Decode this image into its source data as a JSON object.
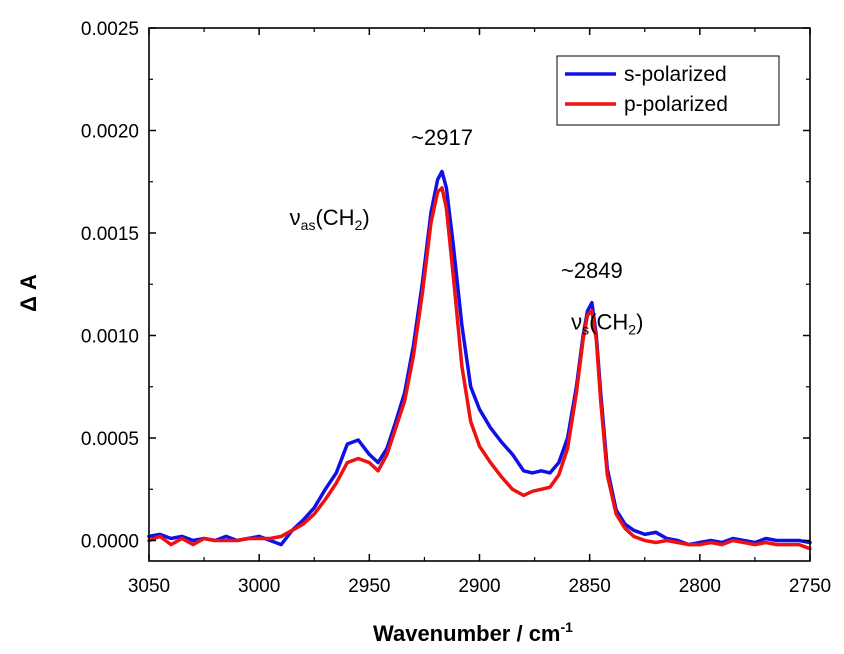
{
  "chart_data": {
    "type": "line",
    "xlabel": "Wavenumber / cm",
    "xlabel_superscript": "-1",
    "ylabel": "Δ A",
    "xlim": [
      3050,
      2750
    ],
    "ylim": [
      -0.0001,
      0.0025
    ],
    "x_ticks": [
      3050,
      3000,
      2950,
      2900,
      2850,
      2800,
      2750
    ],
    "y_ticks": [
      0.0,
      0.0005,
      0.001,
      0.0015,
      0.002,
      0.0025
    ],
    "x_tick_labels": [
      "3050",
      "3000",
      "2950",
      "2900",
      "2850",
      "2800",
      "2750"
    ],
    "y_tick_labels": [
      "0.0000",
      "0.0005",
      "0.0010",
      "0.0015",
      "0.0020",
      "0.0025"
    ],
    "legend_position": "top-right",
    "series": [
      {
        "name": "s-polarized",
        "color": "#1010e6",
        "x": [
          3050,
          3045,
          3040,
          3035,
          3030,
          3025,
          3020,
          3015,
          3010,
          3005,
          3000,
          2995,
          2990,
          2985,
          2980,
          2975,
          2970,
          2965,
          2960,
          2955,
          2950,
          2946,
          2942,
          2938,
          2934,
          2930,
          2926,
          2922,
          2919,
          2917,
          2915,
          2912,
          2908,
          2904,
          2900,
          2895,
          2890,
          2885,
          2880,
          2876,
          2872,
          2868,
          2864,
          2860,
          2856,
          2853,
          2851,
          2849,
          2847,
          2845,
          2842,
          2838,
          2834,
          2830,
          2825,
          2820,
          2815,
          2810,
          2805,
          2800,
          2795,
          2790,
          2785,
          2780,
          2775,
          2770,
          2765,
          2760,
          2755,
          2750
        ],
        "y": [
          2e-05,
          3e-05,
          1e-05,
          2e-05,
          0.0,
          1e-05,
          0.0,
          2e-05,
          0.0,
          1e-05,
          2e-05,
          0.0,
          -2e-05,
          5e-05,
          0.0001,
          0.00016,
          0.00025,
          0.00033,
          0.00047,
          0.00049,
          0.00042,
          0.00038,
          0.00045,
          0.00058,
          0.00072,
          0.00095,
          0.00125,
          0.0016,
          0.00176,
          0.0018,
          0.00172,
          0.00145,
          0.00105,
          0.00075,
          0.00064,
          0.00055,
          0.00048,
          0.00042,
          0.00034,
          0.00033,
          0.00034,
          0.00033,
          0.00038,
          0.0005,
          0.00075,
          0.001,
          0.00112,
          0.00116,
          0.001,
          0.00072,
          0.00035,
          0.00015,
          8e-05,
          5e-05,
          3e-05,
          4e-05,
          1e-05,
          0.0,
          -2e-05,
          -1e-05,
          0.0,
          -1e-05,
          1e-05,
          0.0,
          -1e-05,
          1e-05,
          0.0,
          0.0,
          0.0,
          -1e-05
        ]
      },
      {
        "name": "p-polarized",
        "color": "#ee1111",
        "x": [
          3050,
          3045,
          3040,
          3035,
          3030,
          3025,
          3020,
          3015,
          3010,
          3005,
          3000,
          2995,
          2990,
          2985,
          2980,
          2975,
          2970,
          2965,
          2960,
          2955,
          2950,
          2946,
          2942,
          2938,
          2934,
          2930,
          2926,
          2922,
          2919,
          2917,
          2915,
          2912,
          2908,
          2904,
          2900,
          2895,
          2890,
          2885,
          2880,
          2876,
          2872,
          2868,
          2864,
          2860,
          2856,
          2853,
          2851,
          2849,
          2847,
          2845,
          2842,
          2838,
          2834,
          2830,
          2825,
          2820,
          2815,
          2810,
          2805,
          2800,
          2795,
          2790,
          2785,
          2780,
          2775,
          2770,
          2765,
          2760,
          2755,
          2750
        ],
        "y": [
          0.0,
          2e-05,
          -2e-05,
          1e-05,
          -2e-05,
          1e-05,
          0.0,
          0.0,
          0.0,
          1e-05,
          1e-05,
          1e-05,
          2e-05,
          5e-05,
          8e-05,
          0.00013,
          0.0002,
          0.00028,
          0.00038,
          0.0004,
          0.00038,
          0.00034,
          0.00042,
          0.00055,
          0.00068,
          0.0009,
          0.0012,
          0.00155,
          0.0017,
          0.00172,
          0.00162,
          0.0013,
          0.00085,
          0.00058,
          0.00046,
          0.00038,
          0.00031,
          0.00025,
          0.00022,
          0.00024,
          0.00025,
          0.00026,
          0.00032,
          0.00045,
          0.00072,
          0.00098,
          0.0011,
          0.00112,
          0.00098,
          0.00068,
          0.00032,
          0.00013,
          6e-05,
          2e-05,
          0.0,
          -1e-05,
          0.0,
          -1e-05,
          -2e-05,
          -2e-05,
          -1e-05,
          -2e-05,
          0.0,
          -1e-05,
          -2e-05,
          -1e-05,
          -2e-05,
          -2e-05,
          -2e-05,
          -4e-05
        ]
      }
    ],
    "annotations": [
      {
        "text": "~2917",
        "kind": "plain",
        "x": 2917,
        "y": 0.00193
      },
      {
        "text": "~2849",
        "kind": "plain",
        "x": 2849,
        "y": 0.00128
      },
      {
        "base": "ν",
        "sub": "as",
        "open": "(CH",
        "sub2": "2",
        "close": ")",
        "kind": "mode",
        "x": 2968,
        "y": 0.00154
      },
      {
        "base": "ν",
        "sub": "s",
        "open": "(CH",
        "sub2": "2",
        "close": ")",
        "kind": "mode",
        "x": 2842,
        "y": 0.00103
      }
    ]
  }
}
